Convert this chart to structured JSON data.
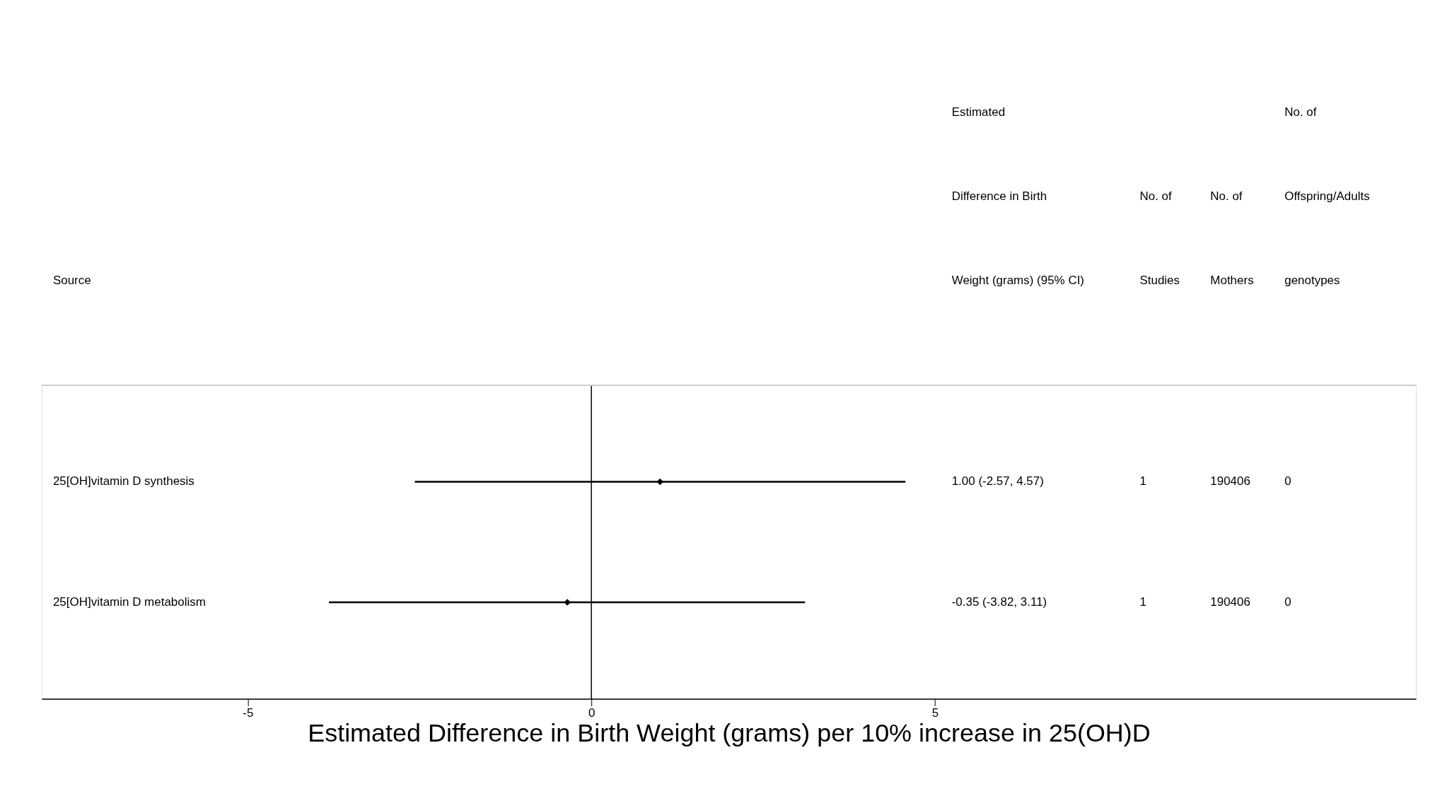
{
  "chart_data": {
    "type": "scatter",
    "orientation": "horizontal",
    "categories": [
      "25[OH]vitamin D synthesis",
      "25[OH]vitamin D metabolism"
    ],
    "values": [
      1.0,
      -0.35
    ],
    "errors": [
      [
        -2.57,
        4.57
      ],
      [
        -3.82,
        3.11
      ]
    ],
    "color": "#000000",
    "marker": "diamond",
    "xlabel": "Estimated Difference in Birth Weight (grams) per 10% increase in 25(OH)D",
    "xlim": [
      -8,
      12
    ],
    "xticks": [
      -5,
      0,
      5
    ],
    "ref_lines": [
      {
        "axis": "x",
        "value": 0
      }
    ],
    "grid": false,
    "annotations": [
      "Source",
      "Estimated\nDifference in Birth\nWeight (grams) (95% CI)",
      "No. of\nStudies",
      "No. of\nMothers",
      "No. of\nOffspring/Adults\ngenotypes",
      "1.00 (-2.57, 4.57)",
      "1",
      "190406",
      "0",
      "-0.35 (-3.82, 3.11)",
      "1",
      "190406",
      "0"
    ]
  }
}
